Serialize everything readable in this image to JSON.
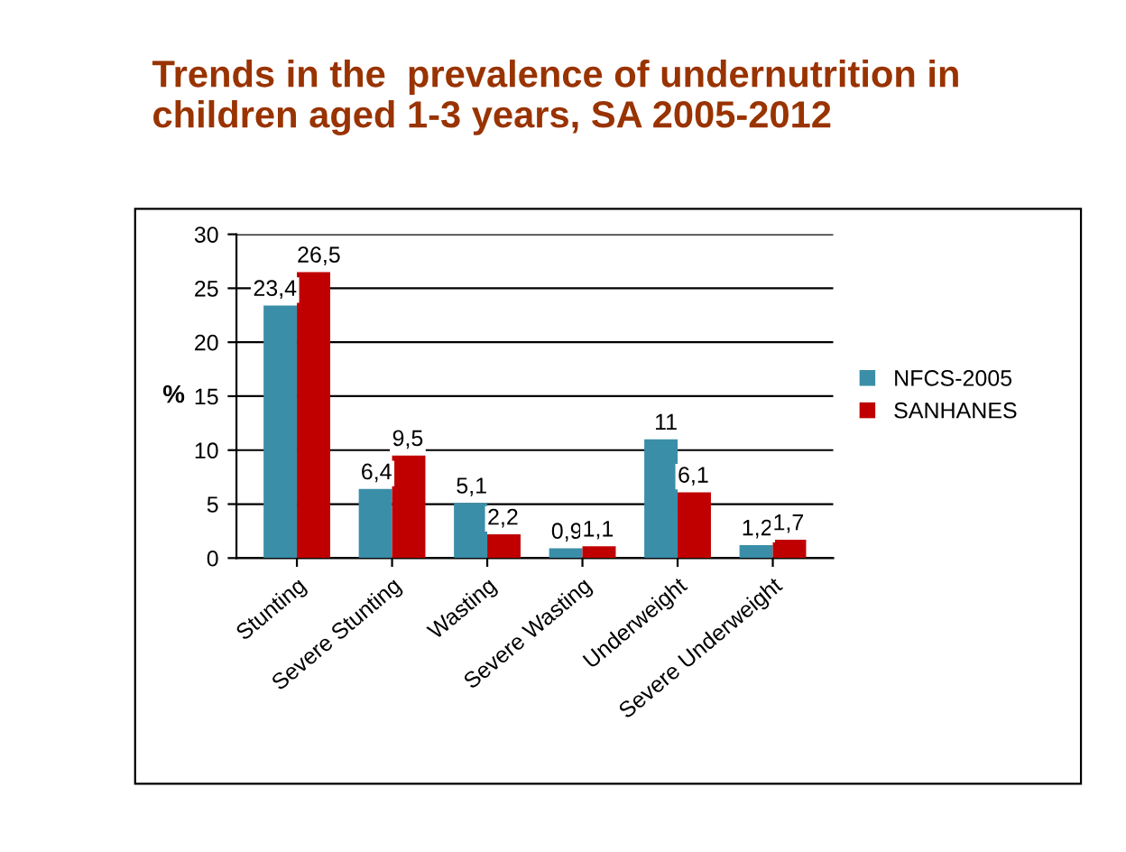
{
  "chart_data": {
    "type": "bar",
    "title": "Trends in the  prevalence of undernutrition in\nchildren aged 1-3 years, SA 2005-2012",
    "ylabel": "%",
    "categories": [
      "Stunting",
      "Severe Stunting",
      "Wasting",
      "Severe Wasting",
      "Underweight",
      "Severe Underweight"
    ],
    "series": [
      {
        "name": "NFCS-2005",
        "color": "#3a8ea8",
        "values": [
          23.4,
          6.4,
          5.1,
          0.9,
          11,
          1.2
        ],
        "value_labels": [
          "23,4",
          "6,4",
          "5,1",
          "0,9",
          "11",
          "1,2"
        ]
      },
      {
        "name": "SANHANES",
        "color": "#c00000",
        "values": [
          26.5,
          9.5,
          2.2,
          1.1,
          6.1,
          1.7
        ],
        "value_labels": [
          "26,5",
          "9,5",
          "2,2",
          "1,1",
          "6,1",
          "1,7"
        ]
      }
    ],
    "ylim": [
      0,
      30
    ],
    "yticks": [
      0,
      5,
      10,
      15,
      20,
      25,
      30
    ],
    "grid": "y",
    "legend": "right"
  }
}
